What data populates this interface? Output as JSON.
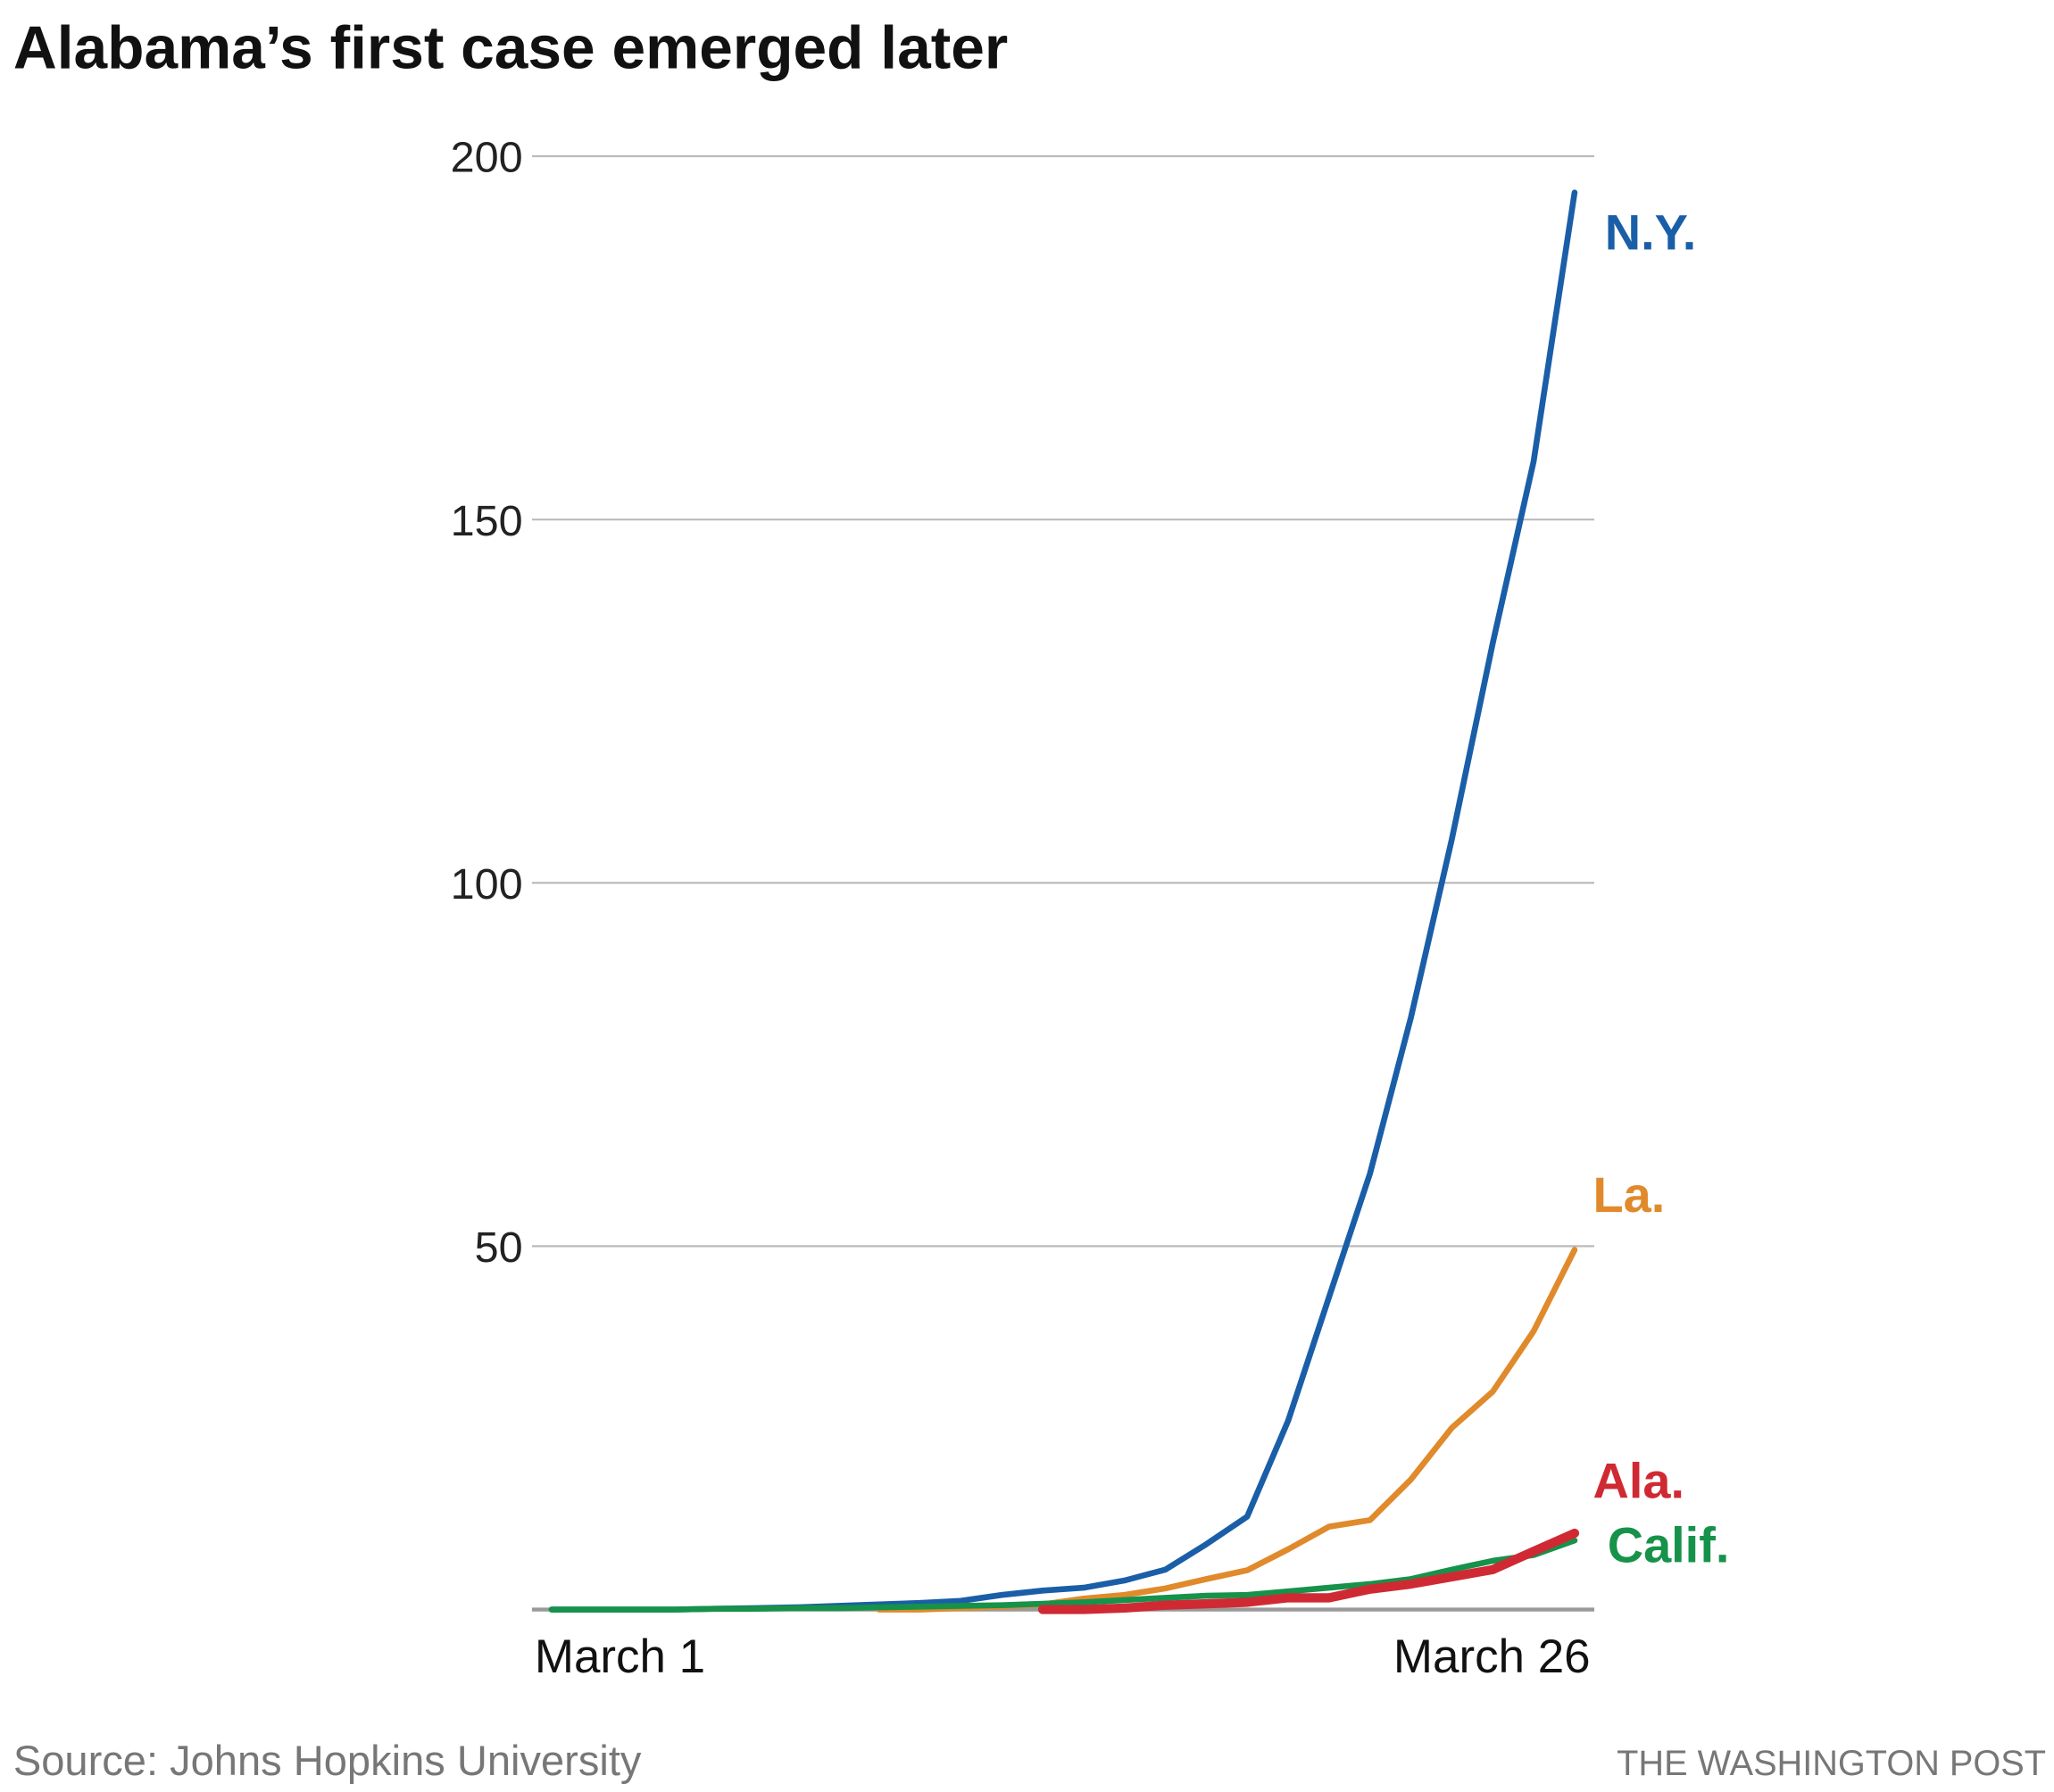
{
  "chart_data": {
    "type": "line",
    "title": "Alabama’s first case emerged later",
    "source": "Source: Johns Hopkins University",
    "credit": "THE WASHINGTON POST",
    "x": [
      "March 1",
      null,
      null,
      null,
      null,
      null,
      null,
      null,
      null,
      null,
      null,
      null,
      null,
      null,
      null,
      null,
      null,
      null,
      null,
      null,
      null,
      null,
      null,
      null,
      null,
      "March 26"
    ],
    "ylim": [
      0,
      200
    ],
    "yticks": [
      50,
      100,
      150,
      200
    ],
    "grid": true,
    "series": [
      {
        "name": "N.Y.",
        "color": "#1a5ea8",
        "values": [
          0,
          0,
          0,
          0,
          0.1,
          0.2,
          0.3,
          0.5,
          0.7,
          0.9,
          1.2,
          2.0,
          2.6,
          3.0,
          4.0,
          5.5,
          9,
          12.8,
          26,
          43,
          60,
          81.5,
          106,
          133,
          158,
          195
        ]
      },
      {
        "name": "La.",
        "color": "#e08a2c",
        "values": [
          null,
          null,
          null,
          null,
          null,
          null,
          null,
          null,
          0,
          0,
          0.2,
          0.4,
          0.7,
          1.5,
          2,
          2.9,
          4.2,
          5.4,
          8.3,
          11.4,
          12.3,
          17.9,
          25,
          30,
          38.3,
          49.5
        ]
      },
      {
        "name": "Calif.",
        "color": "#16924a",
        "values": [
          0,
          0,
          0,
          0,
          0.1,
          0.1,
          0.2,
          0.2,
          0.3,
          0.4,
          0.5,
          0.6,
          0.8,
          1,
          1.3,
          1.6,
          1.9,
          2,
          2.5,
          3,
          3.5,
          4.2,
          5.5,
          6.7,
          7.5,
          9.5
        ]
      },
      {
        "name": "Ala.",
        "color": "#cf2a33",
        "values": [
          null,
          null,
          null,
          null,
          null,
          null,
          null,
          null,
          null,
          null,
          null,
          null,
          0,
          0,
          0.2,
          0.6,
          0.8,
          1,
          1.6,
          1.6,
          2.8,
          3.5,
          4.5,
          5.5,
          8,
          10.5
        ]
      }
    ]
  }
}
